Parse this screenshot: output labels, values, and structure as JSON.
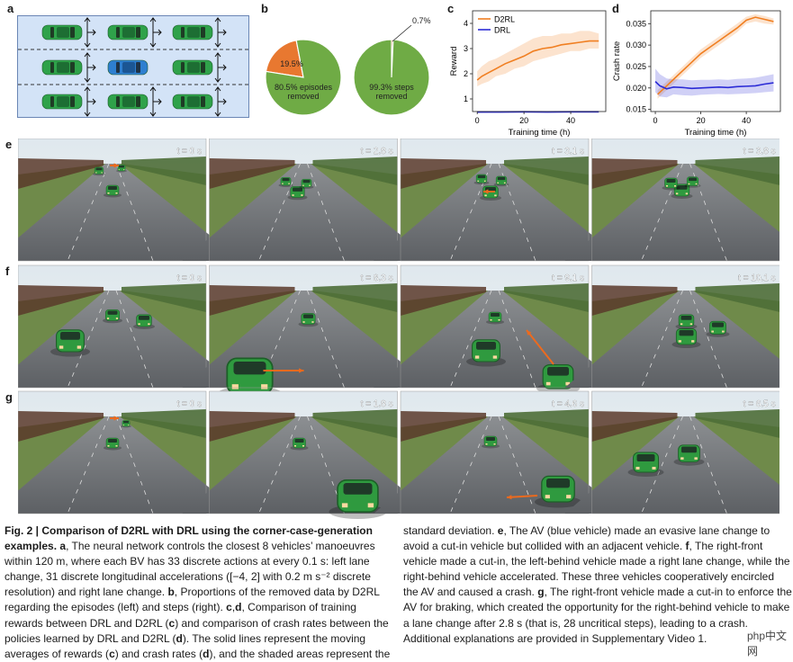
{
  "panels": {
    "a": {
      "label": "a"
    },
    "b": {
      "label": "b"
    },
    "c": {
      "label": "c"
    },
    "d": {
      "label": "d"
    },
    "e": {
      "label": "e"
    },
    "f": {
      "label": "f"
    },
    "g": {
      "label": "g"
    }
  },
  "colors": {
    "av_blue": "#2e7fd0",
    "bv_green": "#2fa24a",
    "pie_green": "#6fab45",
    "pie_orange": "#e87830",
    "d2rl_orange": "#f07f22",
    "drl_blue": "#2b2bd6",
    "road_bg": "#d3e3f7",
    "annotation_orange": "#ec6a1e"
  },
  "chart_data": [
    {
      "type": "pie",
      "panel": "b",
      "slices": [
        {
          "label": "19.5%",
          "value": 19.5,
          "color": "#e87830"
        },
        {
          "label": "80.5% episodes removed",
          "value": 80.5,
          "color": "#6fab45"
        }
      ],
      "label_major_line1": "80.5% episodes",
      "label_major_line2": "removed",
      "label_minor": "19.5%"
    },
    {
      "type": "pie",
      "panel": "b",
      "slices": [
        {
          "label": "0.7%",
          "value": 0.7,
          "color": "#e87830"
        },
        {
          "label": "99.3% steps removed",
          "value": 99.3,
          "color": "#6fab45"
        }
      ],
      "label_major_line1": "99.3% steps",
      "label_major_line2": "removed",
      "label_minor": "0.7%"
    },
    {
      "type": "line",
      "panel": "c",
      "xlabel": "Training time (h)",
      "ylabel": "Reward",
      "xlim": [
        -2,
        55
      ],
      "ylim": [
        0.5,
        4.5
      ],
      "xticks": [
        0,
        20,
        40
      ],
      "yticks": [
        1,
        2,
        3,
        4
      ],
      "legend": "top-left",
      "series": [
        {
          "name": "D2RL",
          "color": "#f07f22",
          "x": [
            0,
            2,
            5,
            8,
            12,
            16,
            20,
            24,
            28,
            32,
            36,
            40,
            44,
            48,
            52
          ],
          "y": [
            1.75,
            1.9,
            2.05,
            2.2,
            2.4,
            2.55,
            2.7,
            2.9,
            3.0,
            3.05,
            3.15,
            3.2,
            3.25,
            3.3,
            3.3
          ],
          "band_low": [
            1.5,
            1.6,
            1.7,
            1.9,
            2.0,
            2.2,
            2.3,
            2.5,
            2.6,
            2.7,
            2.8,
            2.9,
            2.9,
            3.0,
            3.0
          ],
          "band_high": [
            2.1,
            2.3,
            2.5,
            2.6,
            2.8,
            3.0,
            3.2,
            3.4,
            3.5,
            3.5,
            3.6,
            3.6,
            3.7,
            3.7,
            3.6
          ]
        },
        {
          "name": "DRL",
          "color": "#2b2bd6",
          "x": [
            0,
            10,
            20,
            30,
            40,
            52
          ],
          "y": [
            0.48,
            0.48,
            0.49,
            0.48,
            0.49,
            0.49
          ],
          "band_low": [
            0.44,
            0.45,
            0.45,
            0.45,
            0.45,
            0.45
          ],
          "band_high": [
            0.52,
            0.52,
            0.53,
            0.52,
            0.53,
            0.53
          ]
        }
      ]
    },
    {
      "type": "line",
      "panel": "d",
      "xlabel": "Training time (h)",
      "ylabel": "Crash rate",
      "xlim": [
        -2,
        55
      ],
      "ylim": [
        0.0145,
        0.038
      ],
      "xticks": [
        0,
        20,
        40
      ],
      "yticks": [
        0.015,
        0.02,
        0.025,
        0.03,
        0.035
      ],
      "ytick_labels": [
        "0.015",
        "0.020",
        "0.025",
        "0.030",
        "0.035"
      ],
      "series": [
        {
          "name": "D2RL",
          "color": "#f07f22",
          "x": [
            1,
            3,
            5,
            8,
            12,
            16,
            20,
            24,
            28,
            32,
            36,
            40,
            44,
            48,
            52
          ],
          "y": [
            0.0185,
            0.0195,
            0.0205,
            0.022,
            0.024,
            0.026,
            0.028,
            0.0295,
            0.031,
            0.0325,
            0.034,
            0.0358,
            0.0365,
            0.036,
            0.0355
          ],
          "band_low": [
            0.0175,
            0.0185,
            0.0195,
            0.021,
            0.023,
            0.025,
            0.027,
            0.0285,
            0.03,
            0.0315,
            0.033,
            0.035,
            0.0355,
            0.035,
            0.0348
          ],
          "band_high": [
            0.0195,
            0.0205,
            0.0215,
            0.023,
            0.025,
            0.027,
            0.029,
            0.0305,
            0.032,
            0.0335,
            0.035,
            0.0366,
            0.0372,
            0.0368,
            0.0362
          ]
        },
        {
          "name": "DRL",
          "color": "#2b2bd6",
          "x": [
            0,
            2,
            5,
            8,
            12,
            16,
            20,
            24,
            28,
            32,
            36,
            40,
            44,
            48,
            52
          ],
          "y": [
            0.0215,
            0.0205,
            0.0198,
            0.0202,
            0.0201,
            0.0199,
            0.02,
            0.0201,
            0.0202,
            0.0201,
            0.0203,
            0.0204,
            0.0205,
            0.0209,
            0.0212
          ],
          "band_low": [
            0.019,
            0.018,
            0.0178,
            0.0185,
            0.0183,
            0.0182,
            0.0184,
            0.0185,
            0.0186,
            0.0185,
            0.0186,
            0.0187,
            0.0188,
            0.019,
            0.0192
          ],
          "band_high": [
            0.0245,
            0.0232,
            0.0222,
            0.022,
            0.022,
            0.0218,
            0.0219,
            0.0219,
            0.022,
            0.0219,
            0.0221,
            0.0222,
            0.0224,
            0.0228,
            0.0232
          ]
        }
      ]
    }
  ],
  "frames": {
    "e": [
      "t = 0 s",
      "t = 2.8 s",
      "t = 3.1 s",
      "t = 3.8 s"
    ],
    "f": [
      "t = 0 s",
      "t = 8.3 s",
      "t = 9.1 s",
      "t = 10.1 s"
    ],
    "g": [
      "t = 0 s",
      "t = 1.8 s",
      "t = 4.6 s",
      "t = 6.5 s"
    ]
  },
  "caption": {
    "fig_label": "Fig. 2 | Comparison of D2RL with DRL using the corner-case-generation examples.",
    "left_segments": [
      {
        "t": "Fig. 2 | Comparison of D2RL with DRL using the corner-case-generation examples. ",
        "s": "b"
      },
      {
        "t": "a",
        "s": "b"
      },
      {
        "t": ", The neural network controls the closest 8 vehicles’ manoeuvres within 120 m, where each BV has 33 discrete actions at every 0.1 s: left lane change, 31 discrete longitudinal accelerations ([−4, 2] with 0.2 m s⁻² discrete resolution) and right lane change. ",
        "s": ""
      },
      {
        "t": "b",
        "s": "b"
      },
      {
        "t": ", Proportions of the removed data by D2RL regarding the episodes (left) and steps (right). ",
        "s": ""
      },
      {
        "t": "c",
        "s": "b"
      },
      {
        "t": ",",
        "s": ""
      },
      {
        "t": "d",
        "s": "b"
      },
      {
        "t": ", Comparison of training rewards between DRL and D2RL (",
        "s": ""
      },
      {
        "t": "c",
        "s": "b"
      },
      {
        "t": ") and comparison of crash rates between the policies learned by DRL and D2RL (",
        "s": ""
      },
      {
        "t": "d",
        "s": "b"
      },
      {
        "t": "). The solid lines represent the moving averages of rewards (",
        "s": ""
      },
      {
        "t": "c",
        "s": "b"
      },
      {
        "t": ") and crash rates (",
        "s": ""
      },
      {
        "t": "d",
        "s": "b"
      },
      {
        "t": "), and the shaded areas represent the",
        "s": ""
      }
    ],
    "right_segments": [
      {
        "t": "standard deviation. ",
        "s": ""
      },
      {
        "t": "e",
        "s": "b"
      },
      {
        "t": ", The AV (blue vehicle) made an evasive lane change to avoid a cut-in vehicle but collided with an adjacent vehicle. ",
        "s": ""
      },
      {
        "t": "f",
        "s": "b"
      },
      {
        "t": ", The right-front vehicle made a cut-in, the left-behind vehicle made a right lane change, while the right-behind vehicle accelerated. These three vehicles cooperatively encircled the AV and caused a crash. ",
        "s": ""
      },
      {
        "t": "g",
        "s": "b"
      },
      {
        "t": ", The right-front vehicle made a cut-in to enforce the AV for braking, which created the opportunity for the right-behind vehicle to make a lane change after 2.8 s (that is, 28 uncritical steps), leading to a crash. Additional explanations are provided in Supplementary Video 1.",
        "s": ""
      }
    ]
  },
  "watermark": "php中文网"
}
